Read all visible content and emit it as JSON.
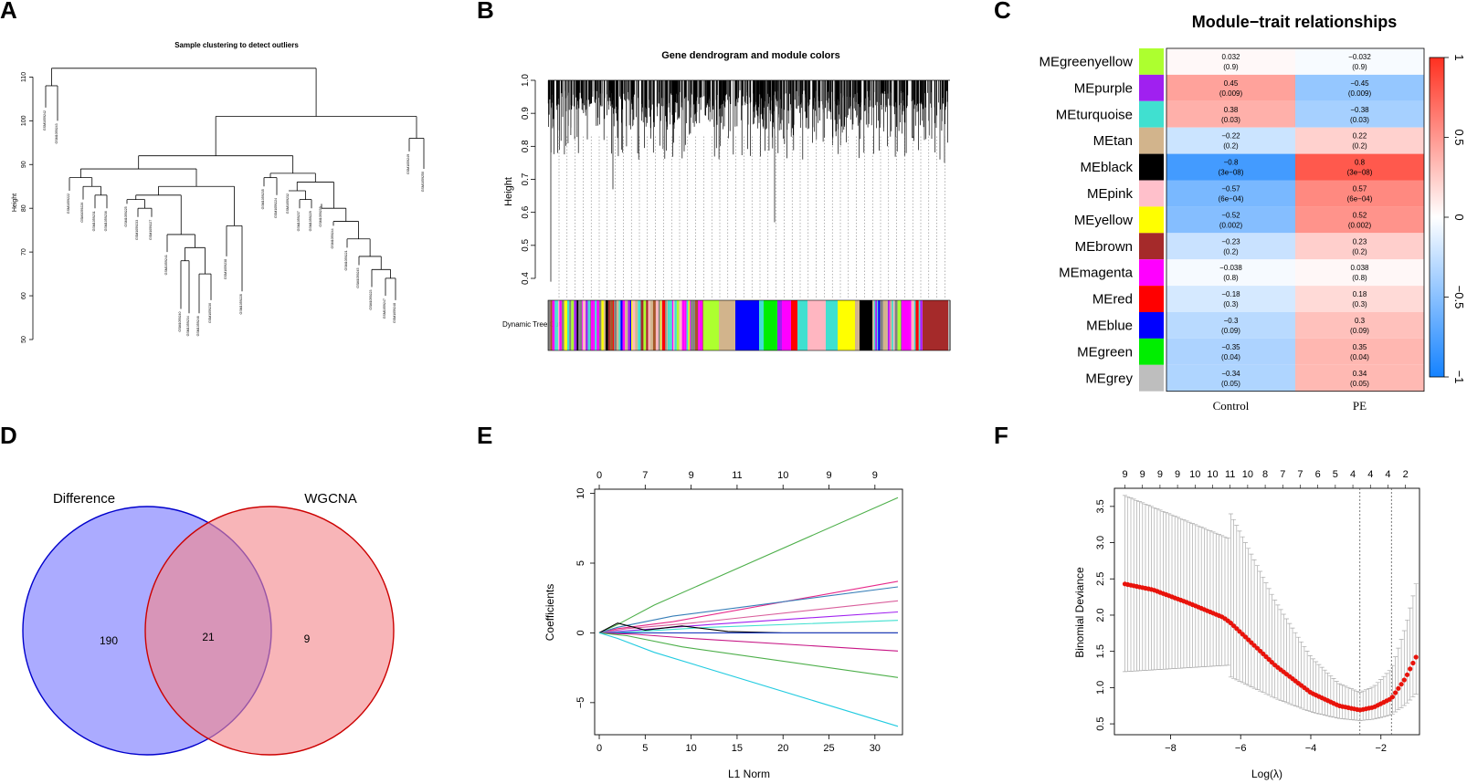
{
  "panels": {
    "a": "A",
    "b": "B",
    "c": "C",
    "d": "D",
    "e": "E",
    "f": "F"
  },
  "chart_data": [
    {
      "id": "A",
      "type": "dendrogram",
      "title": "Sample clustering to detect outliers",
      "ylabel": "Height",
      "ylim": [
        50,
        113
      ],
      "yticks": [
        "50",
        "60",
        "70",
        "80",
        "90",
        "100",
        "110"
      ],
      "leaf_labels": [
        "GSM1059242",
        "GSM1059243",
        "GSM1059222",
        "GSM1059226",
        "GSM1059231",
        "GSM1059236",
        "GSM1059225",
        "GSM1059233",
        "GSM1059227",
        "GSM1059241",
        "GSM1059240",
        "GSM1059234",
        "GSM1059246",
        "GSM1059230",
        "GSM1059238",
        "GSM1059228",
        "GSM1059235",
        "GSM1059224",
        "GSM1059232",
        "GSM1059237",
        "GSM1059229",
        "GSM1059239",
        "GSM1059244",
        "GSM1059221",
        "GSM1059245",
        "GSM1059223",
        "GSM1059247",
        "GSM1059248",
        "GSM1059249",
        "GSM1059250"
      ]
    },
    {
      "id": "B",
      "type": "dendrogram",
      "title": "Gene dendrogram and module colors",
      "ylabel": "Height",
      "ylim": [
        0.4,
        1.0
      ],
      "yticks": [
        "0.4",
        "0.5",
        "0.6",
        "0.7",
        "0.8",
        "0.9",
        "1.0"
      ],
      "colorbar_label": "Dynamic Tree Cut",
      "module_colors": [
        "#808080",
        "#a65628",
        "#ffb6c1",
        "#40e0d0",
        "#ff00ff",
        "#a020f0",
        "#d2b48c",
        "#adff2f",
        "#808080",
        "#0000ff",
        "#00ee00",
        "#ff00ff",
        "#ff0000",
        "#40e0d0",
        "#ffb6c1",
        "#d2b48c",
        "#ffff00",
        "#000000",
        "#a020f0",
        "#40e0d0",
        "#ff00ff",
        "#808080",
        "#a52a2a",
        "#d2b48c"
      ]
    },
    {
      "id": "C",
      "type": "heatmap",
      "title": "Module−trait relationships",
      "columns": [
        "Control",
        "PE"
      ],
      "rows": [
        {
          "name": "MEgreenyellow",
          "color": "#adff2f",
          "control": 0.032,
          "control_label": "0.032",
          "control_p": "(0.9)",
          "pe": -0.032,
          "pe_label": "−0.032",
          "pe_p": "(0.9)"
        },
        {
          "name": "MEpurple",
          "color": "#a020f0",
          "control": 0.45,
          "control_label": "0.45",
          "control_p": "(0.009)",
          "pe": -0.45,
          "pe_label": "−0.45",
          "pe_p": "(0.009)"
        },
        {
          "name": "MEturquoise",
          "color": "#40e0d0",
          "control": 0.38,
          "control_label": "0.38",
          "control_p": "(0.03)",
          "pe": -0.38,
          "pe_label": "−0.38",
          "pe_p": "(0.03)"
        },
        {
          "name": "MEtan",
          "color": "#d2b48c",
          "control": -0.22,
          "control_label": "−0.22",
          "control_p": "(0.2)",
          "pe": 0.22,
          "pe_label": "0.22",
          "pe_p": "(0.2)"
        },
        {
          "name": "MEblack",
          "color": "#000000",
          "control": -0.8,
          "control_label": "−0.8",
          "control_p": "(3e−08)",
          "pe": 0.8,
          "pe_label": "0.8",
          "pe_p": "(3e−08)"
        },
        {
          "name": "MEpink",
          "color": "#ffc0cb",
          "control": -0.57,
          "control_label": "−0.57",
          "control_p": "(6e−04)",
          "pe": 0.57,
          "pe_label": "0.57",
          "pe_p": "(6e−04)"
        },
        {
          "name": "MEyellow",
          "color": "#ffff00",
          "control": -0.52,
          "control_label": "−0.52",
          "control_p": "(0.002)",
          "pe": 0.52,
          "pe_label": "0.52",
          "pe_p": "(0.002)"
        },
        {
          "name": "MEbrown",
          "color": "#a52a2a",
          "control": -0.23,
          "control_label": "−0.23",
          "control_p": "(0.2)",
          "pe": 0.23,
          "pe_label": "0.23",
          "pe_p": "(0.2)"
        },
        {
          "name": "MEmagenta",
          "color": "#ff00ff",
          "control": -0.038,
          "control_label": "−0.038",
          "control_p": "(0.8)",
          "pe": 0.038,
          "pe_label": "0.038",
          "pe_p": "(0.8)"
        },
        {
          "name": "MEred",
          "color": "#ff0000",
          "control": -0.18,
          "control_label": "−0.18",
          "control_p": "(0.3)",
          "pe": 0.18,
          "pe_label": "0.18",
          "pe_p": "(0.3)"
        },
        {
          "name": "MEblue",
          "color": "#0000ff",
          "control": -0.3,
          "control_label": "−0.3",
          "control_p": "(0.09)",
          "pe": 0.3,
          "pe_label": "0.3",
          "pe_p": "(0.09)"
        },
        {
          "name": "MEgreen",
          "color": "#00ee00",
          "control": -0.35,
          "control_label": "−0.35",
          "control_p": "(0.04)",
          "pe": 0.35,
          "pe_label": "0.35",
          "pe_p": "(0.04)"
        },
        {
          "name": "MEgrey",
          "color": "#bebebe",
          "control": -0.34,
          "control_label": "−0.34",
          "control_p": "(0.05)",
          "pe": 0.34,
          "pe_label": "0.34",
          "pe_p": "(0.05)"
        }
      ],
      "legend_range": [
        -1,
        1
      ],
      "legend_ticks": [
        "−1",
        "−0.5",
        "0",
        "0.5",
        "1"
      ]
    },
    {
      "id": "D",
      "type": "venn",
      "sets": [
        {
          "name": "Difference",
          "color": "#9999ff",
          "border": "#0000cc"
        },
        {
          "name": "WGCNA",
          "color": "#f4888c",
          "border": "#cc0000"
        }
      ],
      "counts": {
        "difference_only": "190",
        "intersection": "21",
        "wgcna_only": "9"
      }
    },
    {
      "id": "E",
      "type": "line",
      "xlabel": "L1 Norm",
      "ylabel": "Coefficients",
      "xlim": [
        -0.5,
        33
      ],
      "ylim": [
        -7.3,
        10.3
      ],
      "xticks": [
        "0",
        "5",
        "10",
        "15",
        "20",
        "25",
        "30"
      ],
      "yticks": [
        "−5",
        "0",
        "5",
        "10"
      ],
      "top_ticks": [
        "0",
        "7",
        "9",
        "11",
        "10",
        "9",
        "9"
      ],
      "series": [
        {
          "color": "#4daf4a",
          "x": [
            0,
            2,
            6,
            32.5
          ],
          "y": [
            0,
            0.6,
            2,
            9.7
          ]
        },
        {
          "color": "#e7298a",
          "x": [
            0,
            2,
            8,
            32.5
          ],
          "y": [
            0,
            0.3,
            0.8,
            3.7
          ]
        },
        {
          "color": "#377eb8",
          "x": [
            0,
            2,
            8,
            32.5
          ],
          "y": [
            0,
            0.4,
            1.2,
            3.3
          ]
        },
        {
          "color": "#d95f9c",
          "x": [
            0,
            3,
            10,
            32.5
          ],
          "y": [
            0,
            0.3,
            0.7,
            2.3
          ]
        },
        {
          "color": "#a020f0",
          "x": [
            0,
            4,
            12,
            32.5
          ],
          "y": [
            0,
            0.2,
            0.6,
            1.5
          ]
        },
        {
          "color": "#40e0d0",
          "x": [
            0,
            4,
            12,
            32.5
          ],
          "y": [
            0,
            0.1,
            0.4,
            0.9
          ]
        },
        {
          "color": "#000000",
          "x": [
            0,
            2,
            5,
            9,
            14,
            20,
            32.5
          ],
          "y": [
            0,
            0.7,
            0.2,
            0.5,
            0.1,
            0,
            0
          ]
        },
        {
          "color": "#1f3fbf",
          "x": [
            0,
            32.5
          ],
          "y": [
            0,
            0
          ]
        },
        {
          "color": "#c71585",
          "x": [
            0,
            4,
            10,
            32.5
          ],
          "y": [
            0,
            -0.1,
            -0.4,
            -1.3
          ]
        },
        {
          "color": "#4daf4a",
          "x": [
            0,
            3,
            9,
            32.5
          ],
          "y": [
            0,
            -0.2,
            -1,
            -3.2
          ]
        },
        {
          "color": "#22cbe0",
          "x": [
            0,
            2,
            6,
            32.5
          ],
          "y": [
            0,
            -0.4,
            -1.4,
            -6.7
          ]
        }
      ]
    },
    {
      "id": "F",
      "type": "scatter",
      "xlabel": "Log(λ)",
      "ylabel": "Binomial Deviance",
      "xlim": [
        -9.6,
        -0.9
      ],
      "ylim": [
        0.35,
        3.75
      ],
      "xticks": [
        "−8",
        "−6",
        "−4",
        "−2"
      ],
      "yticks": [
        "0.5",
        "1.0",
        "1.5",
        "2.0",
        "2.5",
        "3.0",
        "3.5"
      ],
      "top_ticks": [
        "9",
        "9",
        "9",
        "9",
        "10",
        "10",
        "11",
        "10",
        "8",
        "7",
        "7",
        "6",
        "5",
        "4",
        "4",
        "4",
        "2"
      ],
      "vlines": [
        -2.6,
        -1.7
      ],
      "curve_x": [
        -9.3,
        -8.5,
        -7.5,
        -6.5,
        -6.3,
        -5,
        -4,
        -3.2,
        -2.6,
        -2.2,
        -1.7,
        -1.3,
        -1.0
      ],
      "curve_y": [
        2.43,
        2.35,
        2.17,
        1.97,
        1.9,
        1.3,
        0.93,
        0.75,
        0.69,
        0.73,
        0.85,
        1.13,
        1.42
      ]
    }
  ]
}
